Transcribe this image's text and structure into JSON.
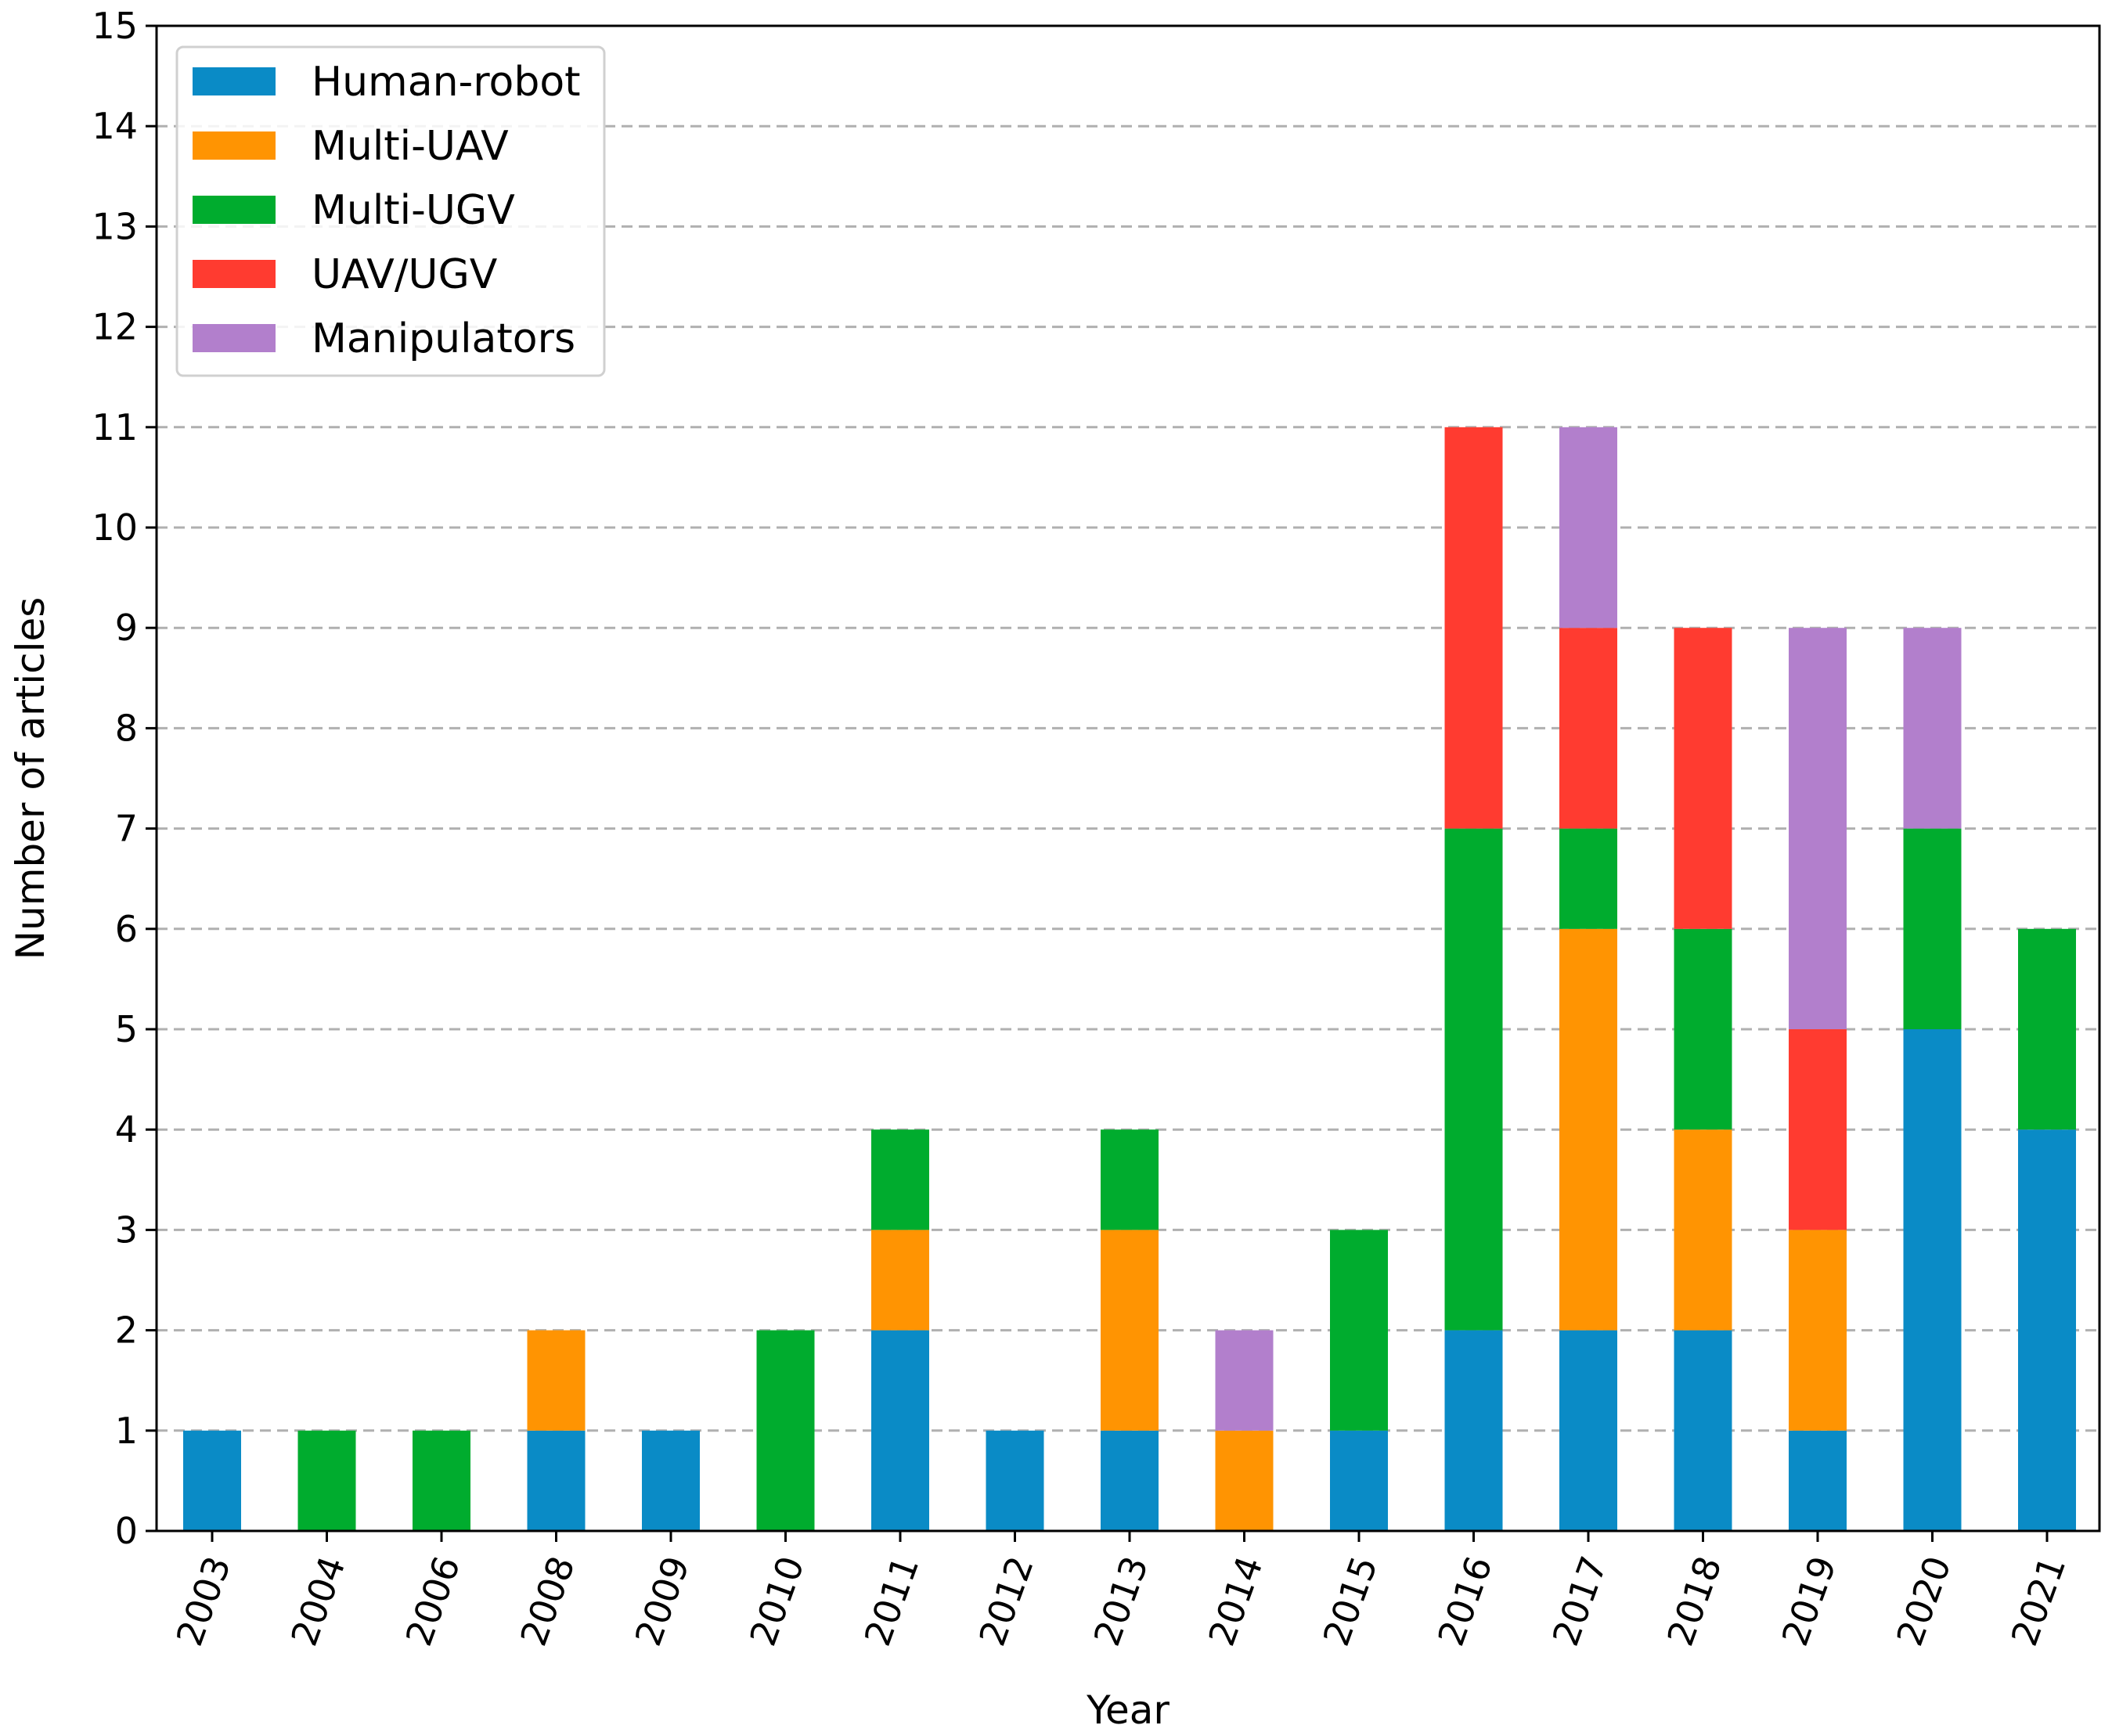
{
  "chart_data": {
    "type": "bar",
    "stacked": true,
    "title": "",
    "xlabel": "Year",
    "ylabel": "Number of articles",
    "ylim": [
      0,
      15
    ],
    "yticks": [
      "0",
      "1",
      "2",
      "3",
      "4",
      "5",
      "6",
      "7",
      "8",
      "9",
      "10",
      "11",
      "12",
      "13",
      "14",
      "15"
    ],
    "grid": "horizontal dashed",
    "legend_position": "top-left",
    "categories": [
      "2003",
      "2004",
      "2006",
      "2008",
      "2009",
      "2010",
      "2011",
      "2012",
      "2013",
      "2014",
      "2015",
      "2016",
      "2017",
      "2018",
      "2019",
      "2020",
      "2021"
    ],
    "series": [
      {
        "name": "Human-robot",
        "color": "#0a8bc6",
        "values": [
          1,
          0,
          0,
          1,
          1,
          0,
          2,
          1,
          1,
          0,
          1,
          2,
          2,
          2,
          1,
          5,
          4
        ]
      },
      {
        "name": "Multi-UAV",
        "color": "#ff9402",
        "values": [
          0,
          0,
          0,
          1,
          0,
          0,
          1,
          0,
          2,
          1,
          0,
          0,
          4,
          2,
          2,
          0,
          0
        ]
      },
      {
        "name": "Multi-UGV",
        "color": "#00ac2e",
        "values": [
          0,
          1,
          1,
          0,
          0,
          2,
          1,
          0,
          1,
          0,
          2,
          5,
          1,
          2,
          0,
          2,
          2
        ]
      },
      {
        "name": "UAV/UGV",
        "color": "#ff3b30",
        "values": [
          0,
          0,
          0,
          0,
          0,
          0,
          0,
          0,
          0,
          0,
          0,
          4,
          2,
          3,
          2,
          0,
          0
        ]
      },
      {
        "name": "Manipulators",
        "color": "#b27fcc",
        "values": [
          0,
          0,
          0,
          0,
          0,
          0,
          0,
          0,
          0,
          1,
          0,
          0,
          2,
          0,
          4,
          2,
          0
        ]
      }
    ]
  }
}
